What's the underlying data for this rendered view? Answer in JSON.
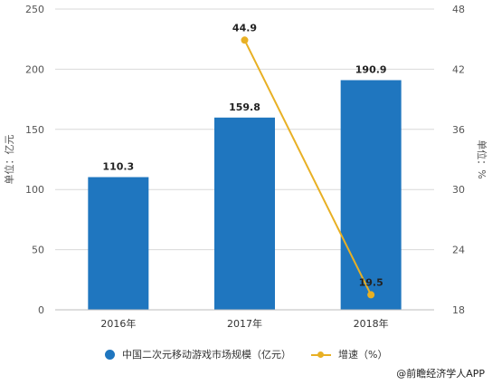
{
  "colors": {
    "bar": "#1f76bf",
    "line": "#e8b024",
    "axis_text": "#555555",
    "grid": "#d9d9d9"
  },
  "chart_data": {
    "type": "bar",
    "categories": [
      "2016年",
      "2017年",
      "2018年"
    ],
    "series": [
      {
        "name": "中国二次元移动游戏市场规模（亿元）",
        "type": "bar",
        "axis": "left",
        "values": [
          110.3,
          159.8,
          190.9
        ],
        "labels": [
          "110.3",
          "159.8",
          "190.9"
        ]
      },
      {
        "name": "增速（%）",
        "type": "line",
        "axis": "right",
        "values": [
          null,
          44.9,
          19.5
        ],
        "labels": [
          "",
          "44.9",
          "19.5"
        ]
      }
    ],
    "ylabel": "单位：亿元",
    "ylabel_right": "单位：%",
    "ylim": [
      0,
      250
    ],
    "ylim_right": [
      18,
      48
    ],
    "yticks": [
      "0",
      "50",
      "100",
      "150",
      "200",
      "250"
    ],
    "yticks_right": [
      "18",
      "24",
      "30",
      "36",
      "42",
      "48"
    ],
    "grid": true,
    "legend_position": "bottom"
  },
  "legend": {
    "bar_label": "中国二次元移动游戏市场规模（亿元）",
    "line_label": "增速（%）"
  },
  "credit": "@前瞻经济学人APP"
}
